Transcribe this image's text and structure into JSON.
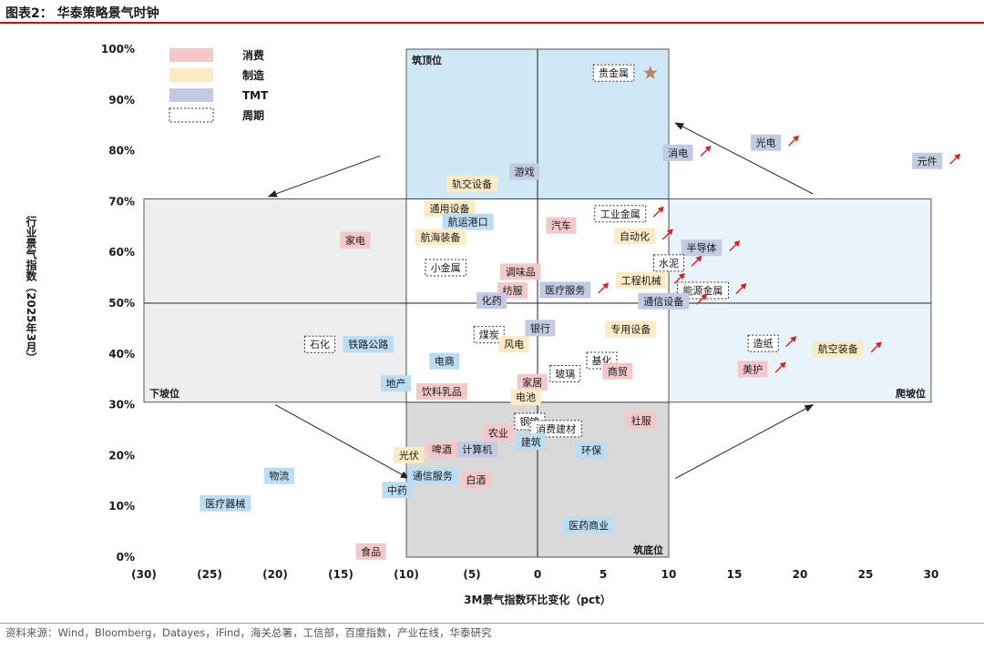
{
  "header": {
    "title": "图表2：  华泰策略景气时钟"
  },
  "source": "资料来源：Wind，Bloomberg，Datayes，iFind，海关总署，工信部，百度指数，产业在线，华泰研究",
  "legend": {
    "items": [
      {
        "label": "消费",
        "color": "#f4c7c9",
        "style": "fill"
      },
      {
        "label": "制造",
        "color": "#fcebc4",
        "style": "fill"
      },
      {
        "label": "TMT",
        "color": "#c3cbe4",
        "style": "fill"
      },
      {
        "label": "周期",
        "color": "#ffffff",
        "style": "dotted"
      }
    ]
  },
  "colors": {
    "消费": "#f4c7c9",
    "制造": "#fcebc4",
    "TMT": "#c3cbe4",
    "周期": "#ffffff",
    "交运": "#b9ddf2",
    "cycleBorder": "#333333",
    "arrowRed": "#e02020",
    "star": "#b5845a",
    "quadTop": "#cfe8f6",
    "quadRight": "#e8f3fb",
    "quadLeft": "#eeeeee",
    "quadBottom": "#d9d9d9"
  },
  "zones": {
    "top": "筑顶位",
    "left": "下坡位",
    "right": "爬坡位",
    "bottom": "筑底位"
  },
  "chart_data": {
    "type": "scatter",
    "xlabel": "3M景气指数环比变化（pct）",
    "ylabel": "行业景气指数（2025年3月）",
    "xlim": [
      -30,
      30
    ],
    "ylim": [
      0,
      100
    ],
    "xticks": [
      -30,
      -25,
      -20,
      -15,
      -10,
      -5,
      0,
      5,
      10,
      15,
      20,
      25,
      30
    ],
    "xtick_labels": [
      "(30)",
      "(25)",
      "(20)",
      "(15)",
      "(10)",
      "(5)",
      "0",
      "5",
      "10",
      "15",
      "20",
      "25",
      "30"
    ],
    "yticks": [
      0,
      10,
      20,
      30,
      40,
      50,
      60,
      70,
      80,
      90,
      100
    ],
    "ytick_labels": [
      "0%",
      "10%",
      "20%",
      "30%",
      "40%",
      "50%",
      "60%",
      "70%",
      "80%",
      "90%",
      "100%"
    ],
    "points": [
      {
        "name": "贵金属",
        "x": 5.8,
        "y": 95.3,
        "category": "周期",
        "marker": "star"
      },
      {
        "name": "光电",
        "x": 17.4,
        "y": 81.6,
        "category": "TMT",
        "marker": "arrow"
      },
      {
        "name": "元件",
        "x": 29.7,
        "y": 78.0,
        "category": "TMT",
        "marker": "arrow"
      },
      {
        "name": "消电",
        "x": 10.7,
        "y": 79.6,
        "category": "TMT",
        "marker": "arrow"
      },
      {
        "name": "游戏",
        "x": -1.0,
        "y": 75.9,
        "category": "TMT"
      },
      {
        "name": "轨交设备",
        "x": -5.0,
        "y": 73.5,
        "category": "制造"
      },
      {
        "name": "通用设备",
        "x": -6.7,
        "y": 68.6,
        "category": "制造"
      },
      {
        "name": "航运港口",
        "x": -5.3,
        "y": 66.0,
        "category": "交运"
      },
      {
        "name": "航海装备",
        "x": -7.4,
        "y": 63.0,
        "category": "制造"
      },
      {
        "name": "汽车",
        "x": 1.8,
        "y": 65.3,
        "category": "消费"
      },
      {
        "name": "工业金属",
        "x": 6.3,
        "y": 67.6,
        "category": "周期",
        "marker": "arrow"
      },
      {
        "name": "自动化",
        "x": 7.4,
        "y": 63.2,
        "category": "制造",
        "marker": "arrow"
      },
      {
        "name": "家电",
        "x": -13.9,
        "y": 62.4,
        "category": "消费"
      },
      {
        "name": "半导体",
        "x": 12.5,
        "y": 60.9,
        "category": "TMT",
        "marker": "arrow"
      },
      {
        "name": "水泥",
        "x": 10.0,
        "y": 57.9,
        "category": "周期",
        "marker": "arrow"
      },
      {
        "name": "小金属",
        "x": -7.0,
        "y": 57.0,
        "category": "周期"
      },
      {
        "name": "调味品",
        "x": -1.3,
        "y": 56.2,
        "category": "消费"
      },
      {
        "name": "工程机械",
        "x": 7.9,
        "y": 54.5,
        "category": "制造",
        "marker": "arrow"
      },
      {
        "name": "纺服",
        "x": -1.9,
        "y": 52.5,
        "category": "消费"
      },
      {
        "name": "医疗服务",
        "x": 2.1,
        "y": 52.6,
        "category": "TMT",
        "marker": "arrow"
      },
      {
        "name": "能源金属",
        "x": 12.6,
        "y": 52.5,
        "category": "周期",
        "marker": "arrow"
      },
      {
        "name": "化药",
        "x": -3.5,
        "y": 50.5,
        "category": "TMT"
      },
      {
        "name": "通信设备",
        "x": 9.6,
        "y": 50.4,
        "category": "TMT",
        "marker": "arrow"
      },
      {
        "name": "银行",
        "x": 0.2,
        "y": 45.1,
        "category": "TMT"
      },
      {
        "name": "煤炭",
        "x": -3.7,
        "y": 43.8,
        "category": "周期"
      },
      {
        "name": "专用设备",
        "x": 7.1,
        "y": 44.9,
        "category": "制造"
      },
      {
        "name": "风电",
        "x": -1.8,
        "y": 41.9,
        "category": "制造"
      },
      {
        "name": "石化",
        "x": -16.6,
        "y": 41.9,
        "category": "周期"
      },
      {
        "name": "铁路公路",
        "x": -12.9,
        "y": 41.9,
        "category": "交运"
      },
      {
        "name": "造纸",
        "x": 17.2,
        "y": 42.1,
        "category": "周期",
        "marker": "arrow"
      },
      {
        "name": "航空装备",
        "x": 22.9,
        "y": 41.0,
        "category": "制造",
        "marker": "arrow"
      },
      {
        "name": "电商",
        "x": -7.1,
        "y": 38.6,
        "category": "交运"
      },
      {
        "name": "基化",
        "x": 4.9,
        "y": 38.7,
        "category": "周期"
      },
      {
        "name": "美护",
        "x": 16.4,
        "y": 37.0,
        "category": "消费",
        "marker": "arrow"
      },
      {
        "name": "商贸",
        "x": 6.1,
        "y": 36.6,
        "category": "消费"
      },
      {
        "name": "玻璃",
        "x": 2.1,
        "y": 36.1,
        "category": "周期"
      },
      {
        "name": "家居",
        "x": -0.4,
        "y": 34.4,
        "category": "消费"
      },
      {
        "name": "地产",
        "x": -10.8,
        "y": 34.2,
        "category": "交运"
      },
      {
        "name": "饮料乳品",
        "x": -7.3,
        "y": 32.6,
        "category": "消费"
      },
      {
        "name": "电池",
        "x": -0.9,
        "y": 31.5,
        "category": "制造"
      },
      {
        "name": "社服",
        "x": 7.9,
        "y": 26.9,
        "category": "消费"
      },
      {
        "name": "钢铁",
        "x": -0.6,
        "y": 26.7,
        "category": "周期"
      },
      {
        "name": "消费建材",
        "x": 1.4,
        "y": 25.3,
        "category": "周期"
      },
      {
        "name": "农业",
        "x": -3.0,
        "y": 24.5,
        "category": "消费"
      },
      {
        "name": "建筑",
        "x": -0.5,
        "y": 22.7,
        "category": "交运"
      },
      {
        "name": "环保",
        "x": 4.1,
        "y": 21.1,
        "category": "交运"
      },
      {
        "name": "啤酒",
        "x": -7.3,
        "y": 21.2,
        "category": "消费"
      },
      {
        "name": "计算机",
        "x": -4.6,
        "y": 21.2,
        "category": "TMT"
      },
      {
        "name": "光伏",
        "x": -9.8,
        "y": 20.1,
        "category": "制造"
      },
      {
        "name": "物流",
        "x": -19.7,
        "y": 16.0,
        "category": "交运"
      },
      {
        "name": "通信服务",
        "x": -8.0,
        "y": 16.0,
        "category": "交运"
      },
      {
        "name": "白酒",
        "x": -4.7,
        "y": 15.2,
        "category": "消费"
      },
      {
        "name": "中药",
        "x": -10.7,
        "y": 13.2,
        "category": "交运"
      },
      {
        "name": "医疗器械",
        "x": -23.8,
        "y": 10.6,
        "category": "交运"
      },
      {
        "name": "医药商业",
        "x": 3.9,
        "y": 6.3,
        "category": "交运"
      },
      {
        "name": "食品",
        "x": -12.7,
        "y": 1.1,
        "category": "消费"
      }
    ]
  }
}
